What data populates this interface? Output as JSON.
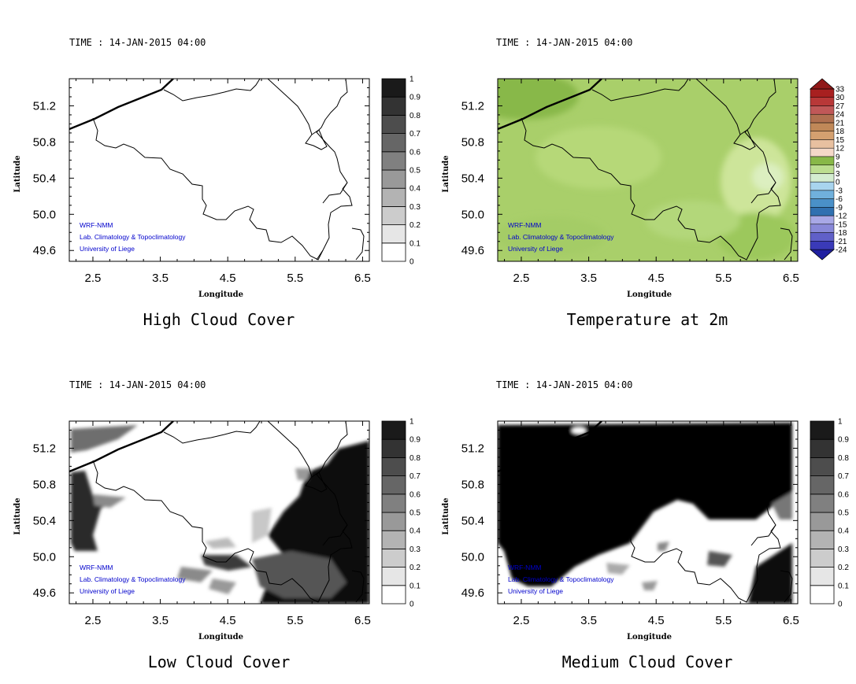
{
  "figure": {
    "x_ticks": [
      "2.5",
      "3.5",
      "4.5",
      "5.5",
      "6.5"
    ],
    "y_ticks": [
      "51.2",
      "50.8",
      "50.4",
      "50.0",
      "49.6"
    ],
    "xlabel": "Longitude",
    "ylabel": "Latitude",
    "credits": [
      "WRF-NMM",
      "Lab. Climatology & Topoclimatology",
      "University of Liege"
    ]
  },
  "panels": [
    {
      "id": "high",
      "time": "TIME : 14-JAN-2015 04:00",
      "title": "High Cloud Cover"
    },
    {
      "id": "temp",
      "time": "TIME : 14-JAN-2015 04:00",
      "title": "Temperature at 2m"
    },
    {
      "id": "low",
      "time": "TIME : 14-JAN-2015 04:00",
      "title": "Low Cloud Cover"
    },
    {
      "id": "mid",
      "time": "TIME : 14-JAN-2015 04:00",
      "title": "Medium Cloud Cover"
    }
  ],
  "chart_data": [
    {
      "type": "heatmap",
      "title": "High Cloud Cover",
      "subtitle": "TIME : 14-JAN-2015 04:00",
      "xlabel": "Longitude",
      "ylabel": "Latitude",
      "x_ticks": [
        2.5,
        3.5,
        4.5,
        5.5,
        6.5
      ],
      "y_ticks": [
        51.2,
        50.8,
        50.4,
        50.0,
        49.6
      ],
      "colorbar": {
        "labels": [
          "0",
          "0.1",
          "0.2",
          "0.3",
          "0.4",
          "0.5",
          "0.6",
          "0.7",
          "0.8",
          "0.9",
          "1"
        ],
        "colors": [
          "#ffffff",
          "#e6e6e6",
          "#cccccc",
          "#b3b3b3",
          "#999999",
          "#808080",
          "#666666",
          "#4d4d4d",
          "#333333",
          "#1a1a1a"
        ]
      },
      "field_summary": "no high cloud over the domain (all values near 0)"
    },
    {
      "type": "heatmap",
      "title": "Temperature at 2m",
      "subtitle": "TIME : 14-JAN-2015 04:00",
      "xlabel": "Longitude",
      "ylabel": "Latitude",
      "x_ticks": [
        2.5,
        3.5,
        4.5,
        5.5,
        6.5
      ],
      "y_ticks": [
        51.2,
        50.8,
        50.4,
        50.0,
        49.6
      ],
      "colorbar": {
        "labels": [
          "-24",
          "-21",
          "-18",
          "-15",
          "-12",
          "-9",
          "-6",
          "-3",
          "0",
          "3",
          "6",
          "9",
          "12",
          "15",
          "18",
          "21",
          "24",
          "27",
          "30",
          "33"
        ],
        "colors": [
          "#2020a0",
          "#3a3ab8",
          "#6060c8",
          "#8888d8",
          "#a8a8e6",
          "#3070b0",
          "#4a90c8",
          "#70b0dc",
          "#a8d4ee",
          "#d4edd0",
          "#bcde90",
          "#88b848",
          "#f4d8c8",
          "#e8c0a0",
          "#d4a070",
          "#c08858",
          "#b07050",
          "#c05858",
          "#b83838",
          "#a82020",
          "#901818"
        ]
      },
      "field_summary": "mostly 3 to 9 degC, warmest (6-9) in the north-west corner, coolest (0-3) in the east"
    },
    {
      "type": "heatmap",
      "title": "Low Cloud Cover",
      "subtitle": "TIME : 14-JAN-2015 04:00",
      "xlabel": "Longitude",
      "ylabel": "Latitude",
      "x_ticks": [
        2.5,
        3.5,
        4.5,
        5.5,
        6.5
      ],
      "y_ticks": [
        51.2,
        50.8,
        50.4,
        50.0,
        49.6
      ],
      "colorbar": {
        "labels": [
          "0",
          "0.1",
          "0.2",
          "0.3",
          "0.4",
          "0.5",
          "0.6",
          "0.7",
          "0.8",
          "0.9",
          "1"
        ],
        "colors": [
          "#ffffff",
          "#e6e6e6",
          "#cccccc",
          "#b3b3b3",
          "#999999",
          "#808080",
          "#666666",
          "#4d4d4d",
          "#333333",
          "#1a1a1a"
        ]
      },
      "field_summary": "overcast (0.9-1) in the east and south-east, broken cloud (0.5-0.7) along the far west, clear elsewhere"
    },
    {
      "type": "heatmap",
      "title": "Medium Cloud Cover",
      "subtitle": "TIME : 14-JAN-2015 04:00",
      "xlabel": "Longitude",
      "ylabel": "Latitude",
      "x_ticks": [
        2.5,
        3.5,
        4.5,
        5.5,
        6.5
      ],
      "y_ticks": [
        51.2,
        50.8,
        50.4,
        50.0,
        49.6
      ],
      "colorbar": {
        "labels": [
          "0",
          "0.1",
          "0.2",
          "0.3",
          "0.4",
          "0.5",
          "0.6",
          "0.7",
          "0.8",
          "0.9",
          "1"
        ],
        "colors": [
          "#ffffff",
          "#e6e6e6",
          "#cccccc",
          "#b3b3b3",
          "#999999",
          "#808080",
          "#666666",
          "#4d4d4d",
          "#333333",
          "#1a1a1a"
        ]
      },
      "field_summary": "overcast (0.9-1) over most of the domain, clear in the south-central region"
    }
  ]
}
